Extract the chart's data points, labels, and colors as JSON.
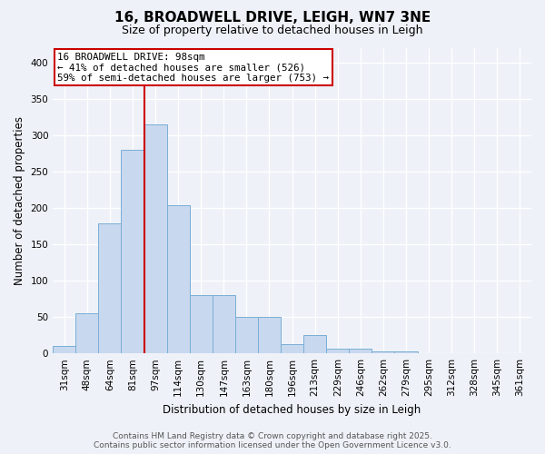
{
  "title": "16, BROADWELL DRIVE, LEIGH, WN7 3NE",
  "subtitle": "Size of property relative to detached houses in Leigh",
  "xlabel": "Distribution of detached houses by size in Leigh",
  "ylabel": "Number of detached properties",
  "categories": [
    "31sqm",
    "48sqm",
    "64sqm",
    "81sqm",
    "97sqm",
    "114sqm",
    "130sqm",
    "147sqm",
    "163sqm",
    "180sqm",
    "196sqm",
    "213sqm",
    "229sqm",
    "246sqm",
    "262sqm",
    "279sqm",
    "295sqm",
    "312sqm",
    "328sqm",
    "345sqm",
    "361sqm"
  ],
  "values": [
    10,
    55,
    178,
    280,
    315,
    203,
    80,
    80,
    50,
    50,
    13,
    25,
    7,
    7,
    3,
    3,
    0,
    0,
    0,
    0,
    0
  ],
  "bar_color": "#c8d8ee",
  "bar_edge_color": "#7aaed6",
  "marker_index": 4,
  "annotation_title": "16 BROADWELL DRIVE: 98sqm",
  "annotation_line1": "← 41% of detached houses are smaller (526)",
  "annotation_line2": "59% of semi-detached houses are larger (753) →",
  "annotation_box_color": "#ffffff",
  "annotation_box_edge_color": "#cc0000",
  "marker_line_color": "#cc0000",
  "ylim": [
    0,
    420
  ],
  "yticks": [
    0,
    50,
    100,
    150,
    200,
    250,
    300,
    350,
    400
  ],
  "footer_line1": "Contains HM Land Registry data © Crown copyright and database right 2025.",
  "footer_line2": "Contains public sector information licensed under the Open Government Licence v3.0.",
  "background_color": "#eef2f8",
  "grid_color": "#ffffff",
  "title_fontsize": 11,
  "subtitle_fontsize": 9,
  "axis_label_fontsize": 8.5,
  "tick_fontsize": 7.5,
  "annotation_fontsize": 7.8,
  "footer_fontsize": 6.5
}
